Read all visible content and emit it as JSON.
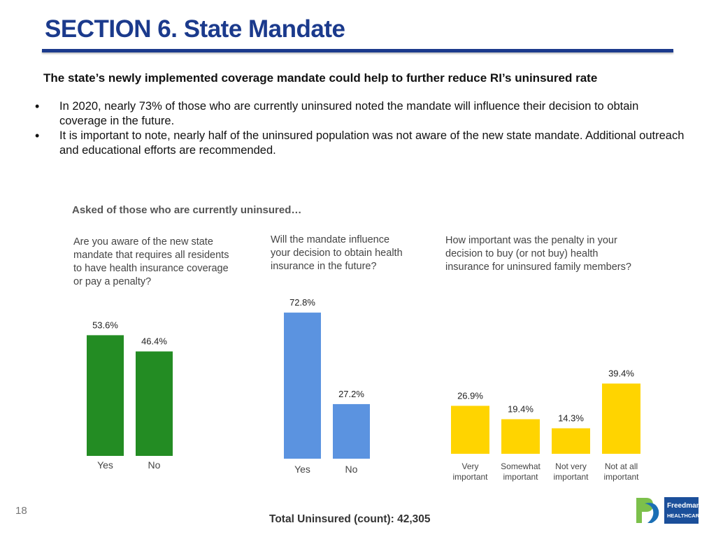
{
  "header": {
    "title": "SECTION 6. State Mandate",
    "subtitle": "The state’s newly implemented coverage mandate could help to further reduce RI’s uninsured rate"
  },
  "bullets": [
    "In 2020, nearly 73% of those who are currently uninsured noted the mandate will influence their decision to obtain coverage in the future.",
    "It is important to note, nearly half of the uninsured population was not aware of the new state mandate. Additional outreach and educational efforts are recommended."
  ],
  "asked_label": "Asked of those who are currently uninsured…",
  "colors": {
    "green": "#238c23",
    "blue": "#5b93e0",
    "yellow": "#ffd400",
    "title": "#1b3a8c"
  },
  "chart_data": [
    {
      "type": "bar",
      "title": "Are you aware of the new state mandate that requires all residents to have health insurance coverage or pay a penalty?",
      "categories": [
        "Yes",
        "No"
      ],
      "values": [
        53.6,
        46.4
      ],
      "labels": [
        "53.6%",
        "46.4%"
      ],
      "color": "#238c23",
      "ylim": [
        0,
        100
      ]
    },
    {
      "type": "bar",
      "title": "Will the mandate influence your decision to obtain health insurance in the future?",
      "categories": [
        "Yes",
        "No"
      ],
      "values": [
        72.8,
        27.2
      ],
      "labels": [
        "72.8%",
        "27.2%"
      ],
      "color": "#5b93e0",
      "ylim": [
        0,
        100
      ]
    },
    {
      "type": "bar",
      "title": "How important was the penalty in your decision to buy (or not buy) health insurance for uninsured family members?",
      "categories": [
        "Very important",
        "Somewhat important",
        "Not very important",
        "Not at all important"
      ],
      "values": [
        26.9,
        19.4,
        14.3,
        39.4
      ],
      "labels": [
        "26.9%",
        "19.4%",
        "14.3%",
        "39.4%"
      ],
      "color": "#ffd400",
      "ylim": [
        0,
        100
      ]
    }
  ],
  "footer": {
    "page_number": "18",
    "total": "Total Uninsured (count): 42,305",
    "logo_text": "Freedman HEALTHCARE"
  }
}
